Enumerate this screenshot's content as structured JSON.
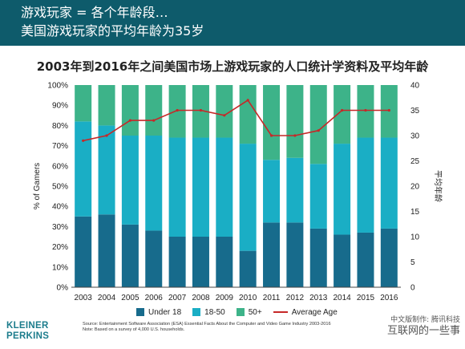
{
  "banner": {
    "line1": "游戏玩家 = 各个年龄段…",
    "line2": "美国游戏玩家的平均年龄为35岁"
  },
  "chart_data": {
    "type": "bar",
    "stacked": true,
    "title": "2003年到2016年之间美国市场上游戏玩家的人口统计学资料及平均年龄",
    "ylabel": "% of Gamers",
    "y2label": "平均年龄",
    "categories": [
      "2003",
      "2004",
      "2005",
      "2006",
      "2007",
      "2008",
      "2009",
      "2010",
      "2011",
      "2012",
      "2013",
      "2014",
      "2015",
      "2016"
    ],
    "ylim": [
      0,
      100
    ],
    "y2lim": [
      0,
      40
    ],
    "yticks": [
      "0%",
      "10%",
      "20%",
      "30%",
      "40%",
      "50%",
      "60%",
      "70%",
      "80%",
      "90%",
      "100%"
    ],
    "y2ticks": [
      "0",
      "5",
      "10",
      "15",
      "20",
      "25",
      "30",
      "35",
      "40"
    ],
    "series": [
      {
        "name": "Under 18",
        "color": "#176b8c",
        "values": [
          35,
          36,
          31,
          28,
          25,
          25,
          25,
          18,
          32,
          32,
          29,
          26,
          27,
          29
        ]
      },
      {
        "name": "18-50",
        "color": "#1aaec5",
        "values": [
          47,
          44,
          44,
          47,
          49,
          49,
          49,
          53,
          31,
          32,
          32,
          45,
          47,
          45
        ]
      },
      {
        "name": "50+",
        "color": "#3db389",
        "values": [
          18,
          20,
          25,
          25,
          26,
          26,
          26,
          29,
          37,
          36,
          39,
          29,
          26,
          26
        ]
      },
      {
        "name": "Average Age",
        "type": "line",
        "axis": "right",
        "color": "#c62828",
        "values": [
          29,
          30,
          33,
          33,
          35,
          35,
          34,
          37,
          30,
          30,
          31,
          35,
          35,
          35
        ]
      }
    ],
    "legend_position": "bottom",
    "grid": false
  },
  "footer": {
    "source": "Source: Entertainment Software Association (ESA) Essential Facts About the Computer and Video Game Industry 2003-2016",
    "note": "Note: Based on a survey of 4,000 U.S. households.",
    "logo_line1": "KLEINER",
    "logo_line2": "PERKINS",
    "watermark_line1": "中文版制作: 腾讯科技",
    "watermark_line2": "互联网的一些事"
  }
}
